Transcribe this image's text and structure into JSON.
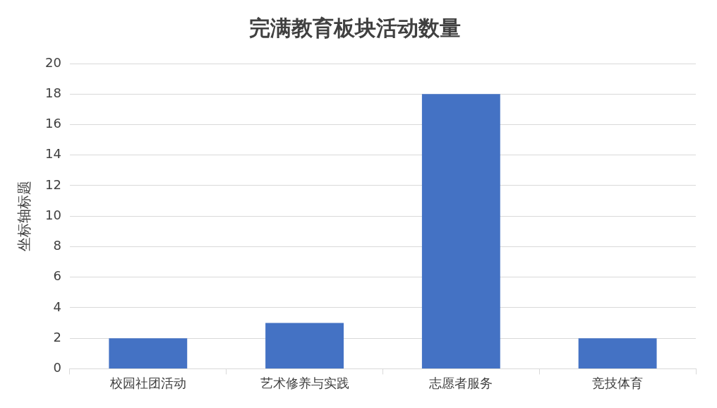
{
  "chart_data": {
    "type": "bar",
    "title": "完满教育板块活动数量",
    "ylabel": "坐标轴标题",
    "categories": [
      "校园社团活动",
      "艺术修养与实践",
      "志愿者服务",
      "竞技体育"
    ],
    "values": [
      2,
      3,
      18,
      2
    ],
    "color": "#4472c4",
    "ylim": [
      0,
      20
    ],
    "yticks": [
      0,
      2,
      4,
      6,
      8,
      10,
      12,
      14,
      16,
      18,
      20
    ],
    "grid": "y"
  }
}
